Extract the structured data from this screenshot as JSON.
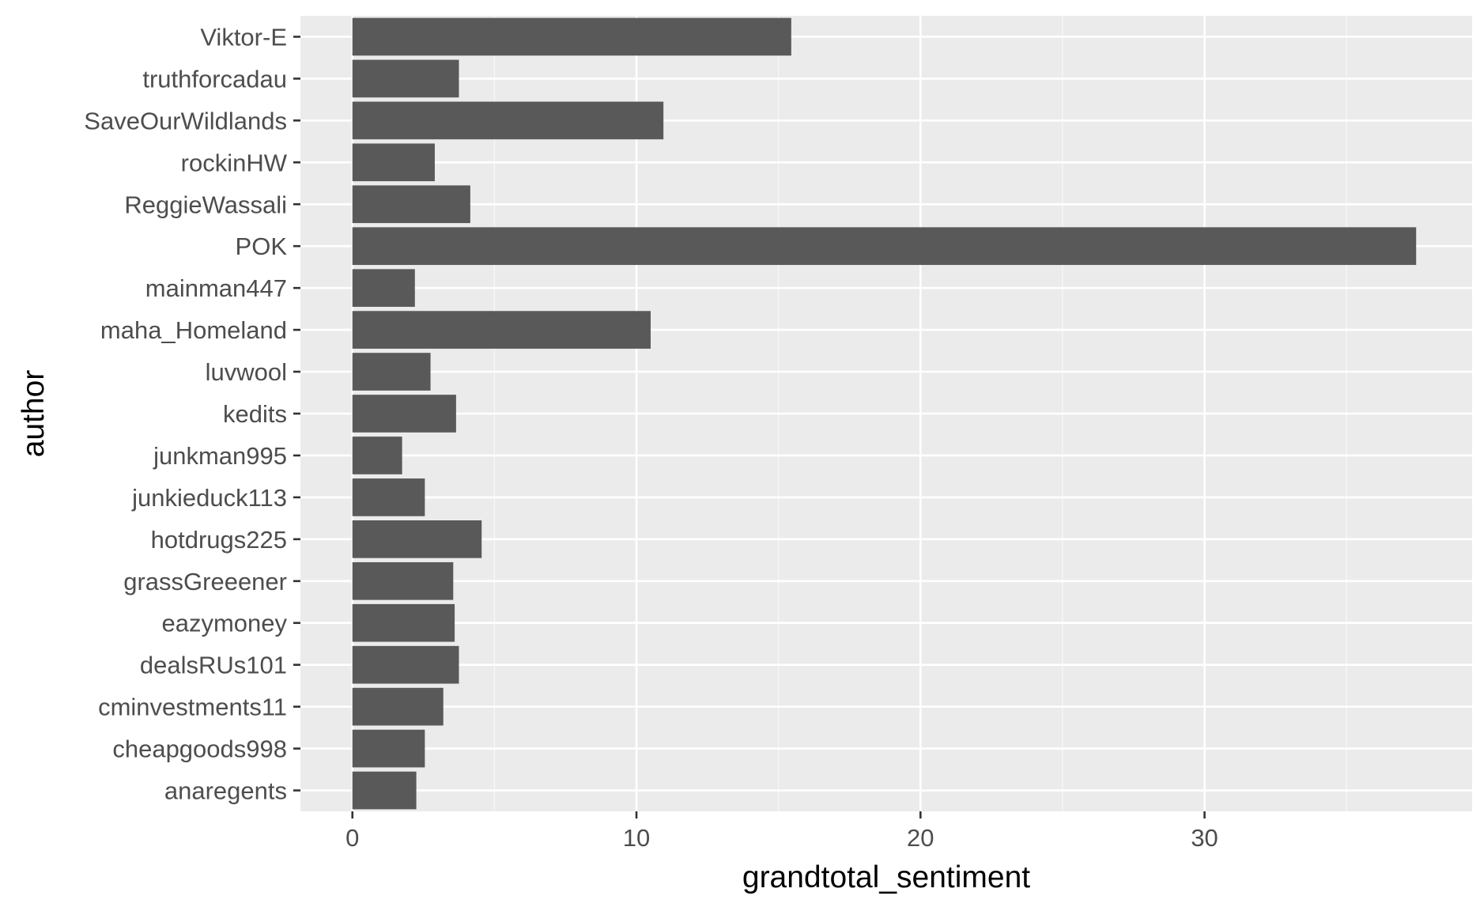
{
  "chart_data": {
    "type": "bar",
    "orientation": "horizontal",
    "xlabel": "grandtotal_sentiment",
    "ylabel": "author",
    "xlim": [
      -1.83,
      39.42
    ],
    "x_ticks": [
      0,
      10,
      20,
      30
    ],
    "x_minor_ticks": [
      5,
      15,
      25,
      35
    ],
    "grid": true,
    "legend": "none",
    "categories": [
      "Viktor-E",
      "truthforcadau",
      "SaveOurWildlands",
      "rockinHW",
      "ReggieWassali",
      "POK",
      "mainman447",
      "maha_Homeland",
      "luvwool",
      "kedits",
      "junkman995",
      "junkieduck113",
      "hotdrugs225",
      "grassGreeener",
      "eazymoney",
      "dealsRUs101",
      "cminvestments11",
      "cheapgoods998",
      "anaregents"
    ],
    "values": [
      15.45,
      3.75,
      10.95,
      2.9,
      4.15,
      37.45,
      2.2,
      10.5,
      2.75,
      3.65,
      1.75,
      2.55,
      4.55,
      3.55,
      3.6,
      3.75,
      3.2,
      2.55,
      2.25
    ]
  },
  "colors": {
    "panel_background": "#ebebeb",
    "grid_major": "#ffffff",
    "grid_minor": "#f7f7f7",
    "bar_fill": "#595959",
    "tick_label": "#4d4d4d",
    "axis_title": "#000000",
    "tick_mark": "#333333"
  }
}
